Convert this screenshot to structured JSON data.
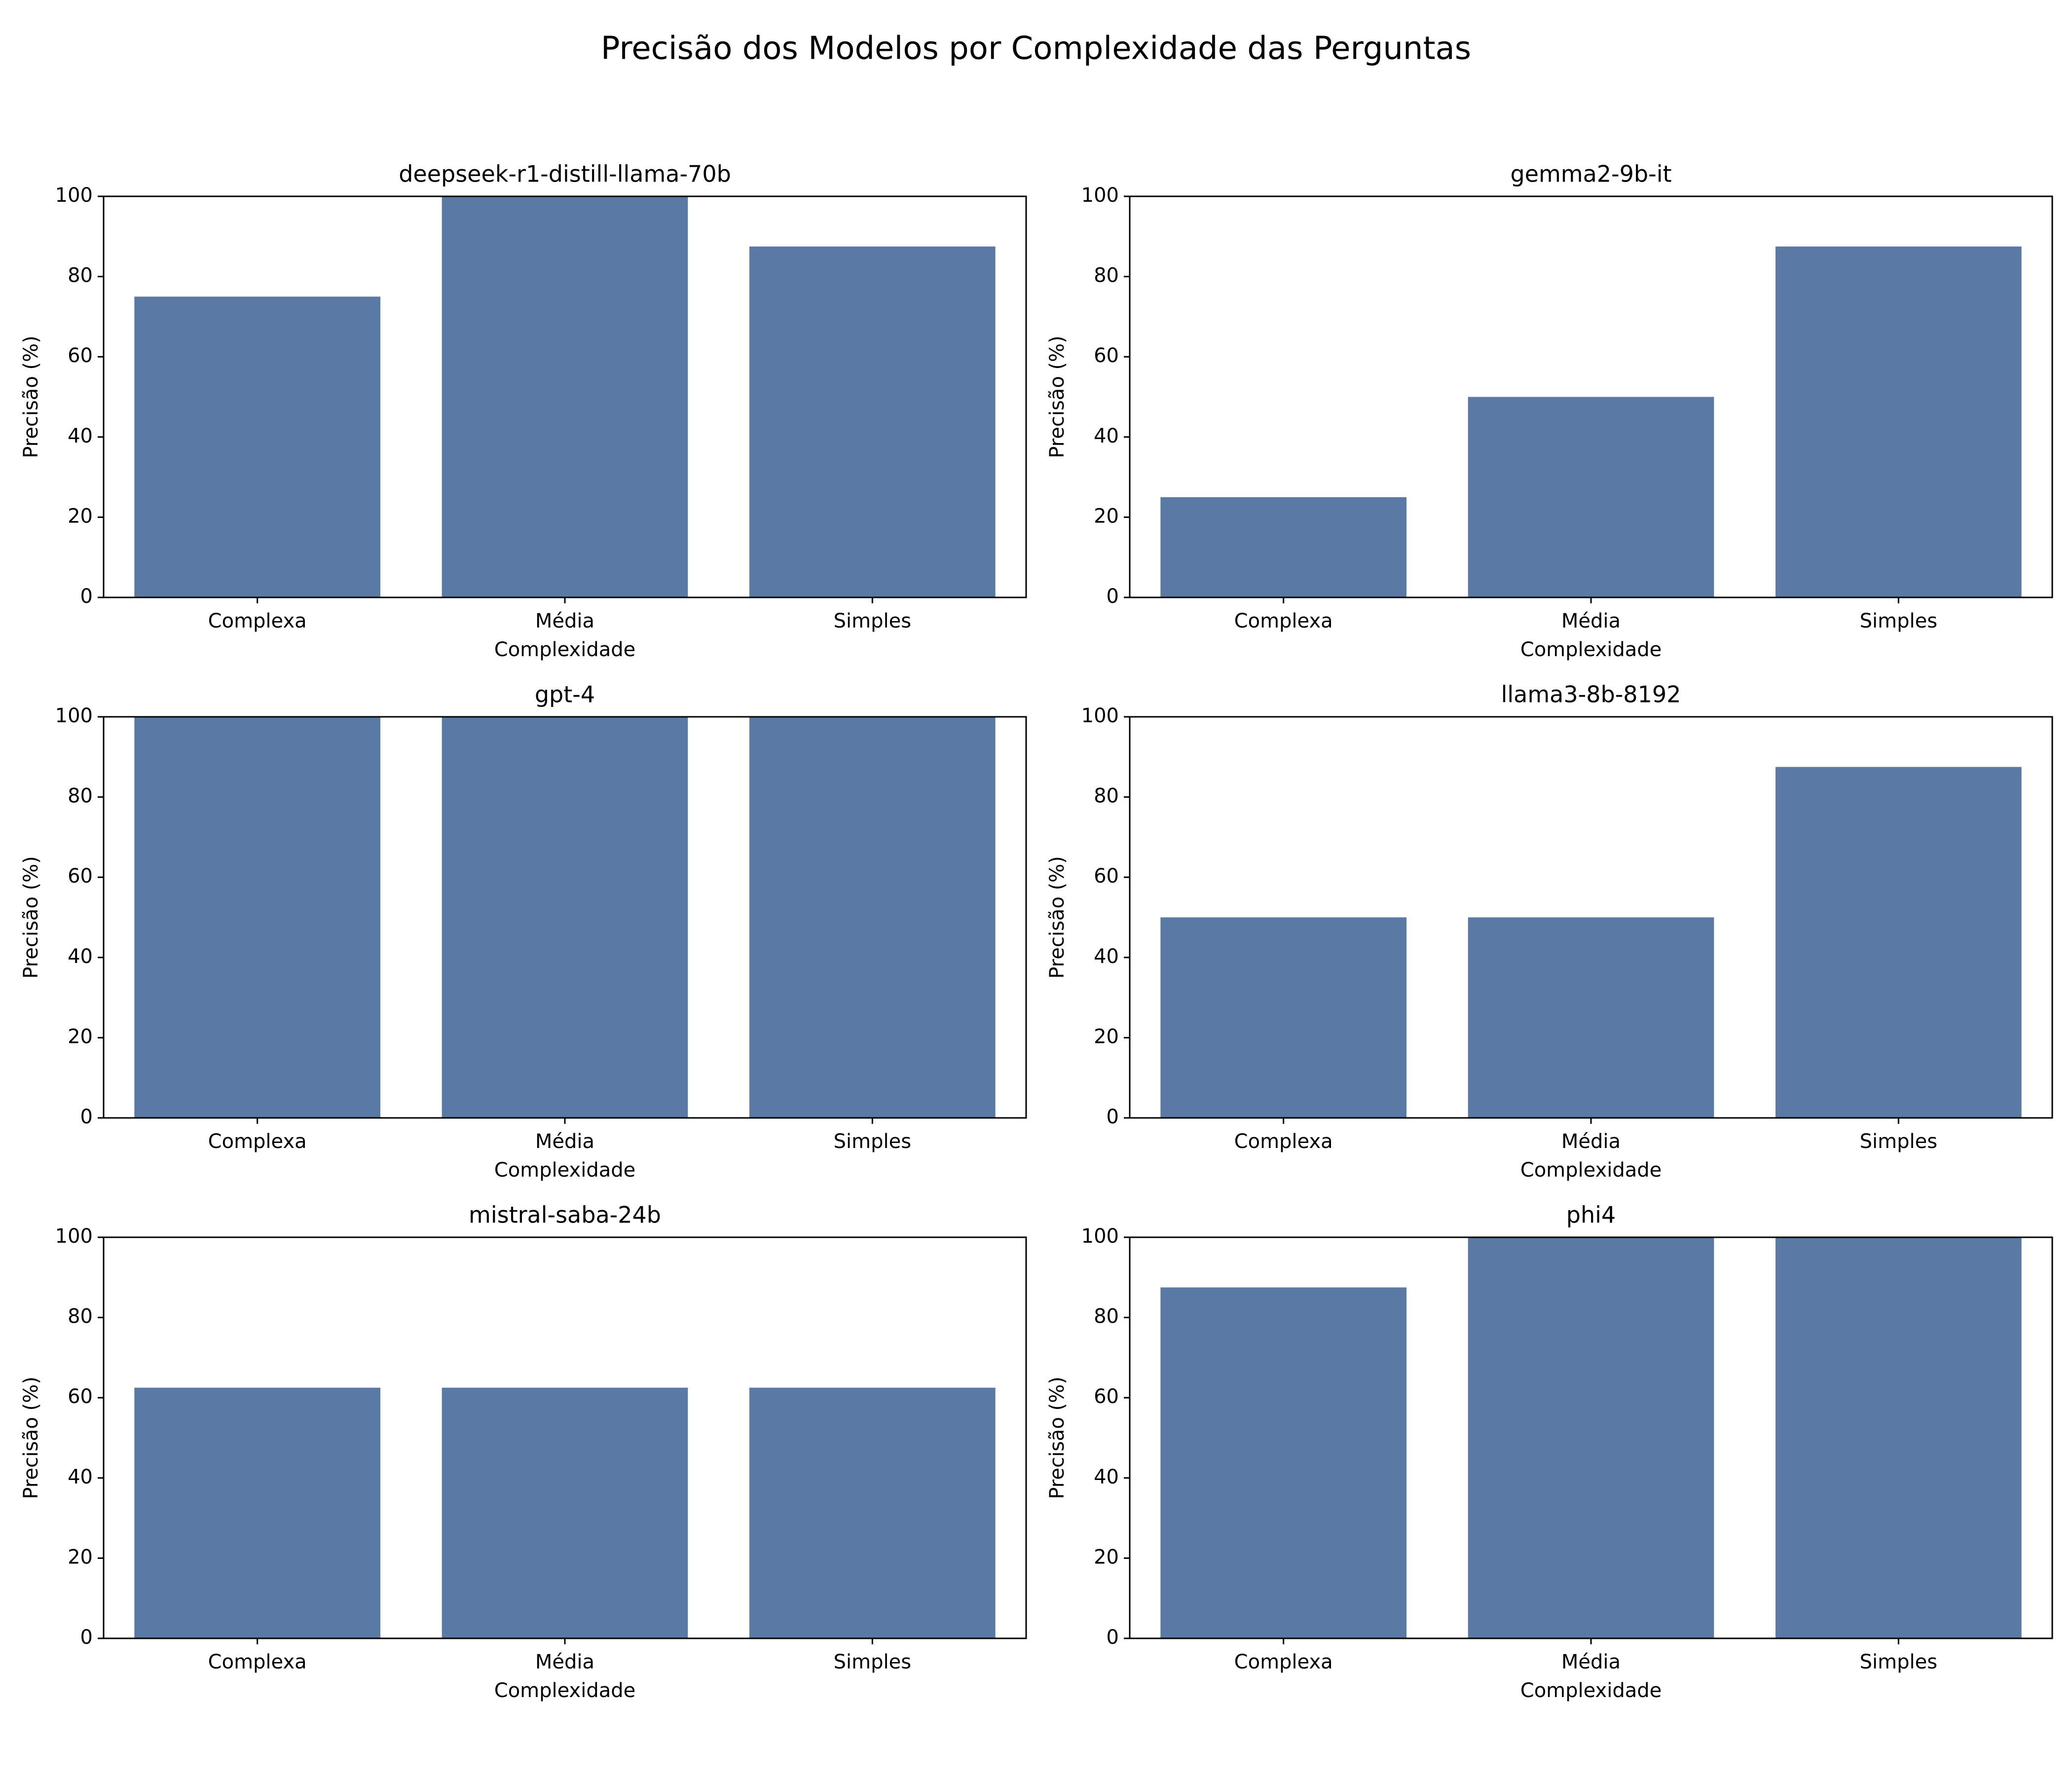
{
  "figure": {
    "title": "Precisão dos Modelos por Complexidade das Perguntas"
  },
  "style": {
    "bar_color": "#5b79a5",
    "axis_color": "#000000",
    "background": "#ffffff"
  },
  "chart_data": [
    {
      "type": "bar",
      "title": "deepseek-r1-distill-llama-70b",
      "categories": [
        "Complexa",
        "Média",
        "Simples"
      ],
      "values": [
        75,
        100,
        87.5
      ],
      "xlabel": "Complexidade",
      "ylabel": "Precisão (%)",
      "ylim": [
        0,
        100
      ],
      "yticks": [
        "0",
        "20",
        "40",
        "60",
        "80",
        "100"
      ],
      "grid": false,
      "legend": false
    },
    {
      "type": "bar",
      "title": "gemma2-9b-it",
      "categories": [
        "Complexa",
        "Média",
        "Simples"
      ],
      "values": [
        25,
        50,
        87.5
      ],
      "xlabel": "Complexidade",
      "ylabel": "Precisão (%)",
      "ylim": [
        0,
        100
      ],
      "yticks": [
        "0",
        "20",
        "40",
        "60",
        "80",
        "100"
      ],
      "grid": false,
      "legend": false
    },
    {
      "type": "bar",
      "title": "gpt-4",
      "categories": [
        "Complexa",
        "Média",
        "Simples"
      ],
      "values": [
        100,
        100,
        100
      ],
      "xlabel": "Complexidade",
      "ylabel": "Precisão (%)",
      "ylim": [
        0,
        100
      ],
      "yticks": [
        "0",
        "20",
        "40",
        "60",
        "80",
        "100"
      ],
      "grid": false,
      "legend": false
    },
    {
      "type": "bar",
      "title": "llama3-8b-8192",
      "categories": [
        "Complexa",
        "Média",
        "Simples"
      ],
      "values": [
        50,
        50,
        87.5
      ],
      "xlabel": "Complexidade",
      "ylabel": "Precisão (%)",
      "ylim": [
        0,
        100
      ],
      "yticks": [
        "0",
        "20",
        "40",
        "60",
        "80",
        "100"
      ],
      "grid": false,
      "legend": false
    },
    {
      "type": "bar",
      "title": "mistral-saba-24b",
      "categories": [
        "Complexa",
        "Média",
        "Simples"
      ],
      "values": [
        62.5,
        62.5,
        62.5
      ],
      "xlabel": "Complexidade",
      "ylabel": "Precisão (%)",
      "ylim": [
        0,
        100
      ],
      "yticks": [
        "0",
        "20",
        "40",
        "60",
        "80",
        "100"
      ],
      "grid": false,
      "legend": false
    },
    {
      "type": "bar",
      "title": "phi4",
      "categories": [
        "Complexa",
        "Média",
        "Simples"
      ],
      "values": [
        87.5,
        100,
        100
      ],
      "xlabel": "Complexidade",
      "ylabel": "Precisão (%)",
      "ylim": [
        0,
        100
      ],
      "yticks": [
        "0",
        "20",
        "40",
        "60",
        "80",
        "100"
      ],
      "grid": false,
      "legend": false
    }
  ]
}
